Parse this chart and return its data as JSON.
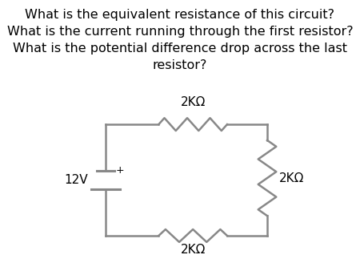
{
  "title_lines": [
    "What is the equivalent resistance of this circuit?",
    "What is the current running through the first resistor?",
    "What is the potential difference drop across the last",
    "resistor?"
  ],
  "title_fontsize": 11.5,
  "bg_color": "#ffffff",
  "circuit_color": "#888888",
  "text_color": "#000000",
  "battery_label": "12V",
  "resistor_labels": [
    "2KΩ",
    "2KΩ",
    "2KΩ"
  ],
  "figsize": [
    4.5,
    3.38
  ],
  "dpi": 100
}
